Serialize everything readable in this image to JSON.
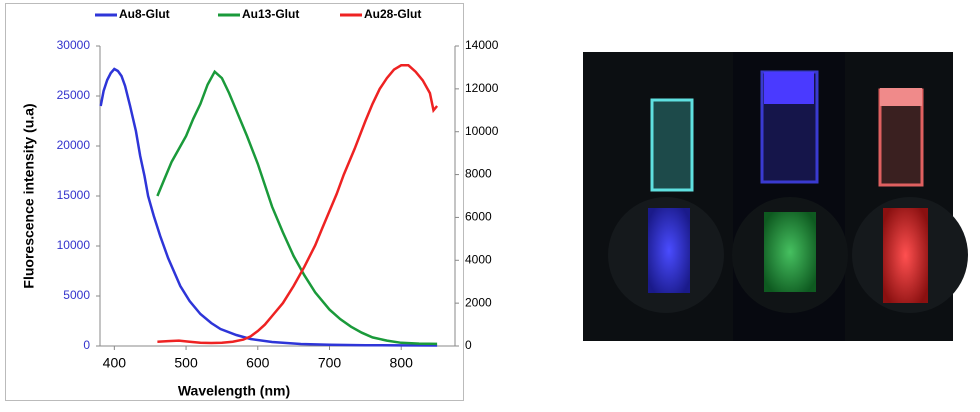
{
  "chart_data": {
    "type": "line",
    "xlabel": "Wavelength (nm)",
    "ylabel": "Fluorescence intensity (u.a)",
    "xlim": [
      380,
      875
    ],
    "xticks": [
      400,
      500,
      600,
      700,
      800
    ],
    "ylim": [
      0,
      30000
    ],
    "yticks": [
      0,
      5000,
      10000,
      15000,
      20000,
      25000,
      30000
    ],
    "y2lim": [
      0,
      14000
    ],
    "y2ticks": [
      0,
      2000,
      4000,
      6000,
      8000,
      10000,
      12000,
      14000
    ],
    "ytick_color": "#3333cc",
    "legend": "top",
    "series": [
      {
        "name": "Au8-Glut",
        "color": "#2e35d8",
        "x": [
          381,
          385,
          390,
          395,
          400,
          405,
          410,
          415,
          422,
          430,
          436,
          442,
          447,
          455,
          464,
          475,
          492,
          505,
          520,
          535,
          548,
          570,
          590,
          620,
          660,
          700,
          750,
          800,
          850
        ],
        "values": [
          24000,
          25500,
          26600,
          27300,
          27700,
          27500,
          27000,
          26000,
          24000,
          21500,
          19000,
          17000,
          15000,
          13000,
          11000,
          8800,
          6000,
          4500,
          3200,
          2300,
          1700,
          1100,
          700,
          400,
          200,
          120,
          80,
          60,
          50
        ]
      },
      {
        "name": "Au13-Glut",
        "color": "#1a9a3a",
        "axis": "y2",
        "x": [
          460,
          470,
          480,
          490,
          500,
          510,
          520,
          530,
          540,
          550,
          560,
          570,
          585,
          600,
          620,
          635,
          650,
          665,
          680,
          700,
          715,
          730,
          745,
          760,
          780,
          800,
          825,
          850
        ],
        "values": [
          7000,
          7800,
          8600,
          9200,
          9800,
          10600,
          11300,
          12200,
          12800,
          12500,
          11800,
          11000,
          9800,
          8500,
          6500,
          5300,
          4200,
          3300,
          2500,
          1700,
          1250,
          900,
          620,
          400,
          250,
          150,
          110,
          100
        ]
      },
      {
        "name": "Au28-Glut",
        "color": "#ee2222",
        "axis": "y2",
        "x": [
          460,
          475,
          490,
          505,
          520,
          535,
          550,
          565,
          580,
          590,
          600,
          610,
          620,
          635,
          650,
          665,
          680,
          690,
          700,
          710,
          720,
          735,
          750,
          760,
          770,
          780,
          790,
          800,
          810,
          820,
          830,
          840,
          845,
          850
        ],
        "values": [
          200,
          230,
          250,
          200,
          150,
          140,
          150,
          200,
          300,
          450,
          700,
          1000,
          1400,
          2000,
          2800,
          3700,
          4700,
          5500,
          6300,
          7100,
          8000,
          9200,
          10500,
          11300,
          12000,
          12500,
          12900,
          13100,
          13100,
          12800,
          12400,
          11800,
          11000,
          11200
        ]
      }
    ]
  }
}
